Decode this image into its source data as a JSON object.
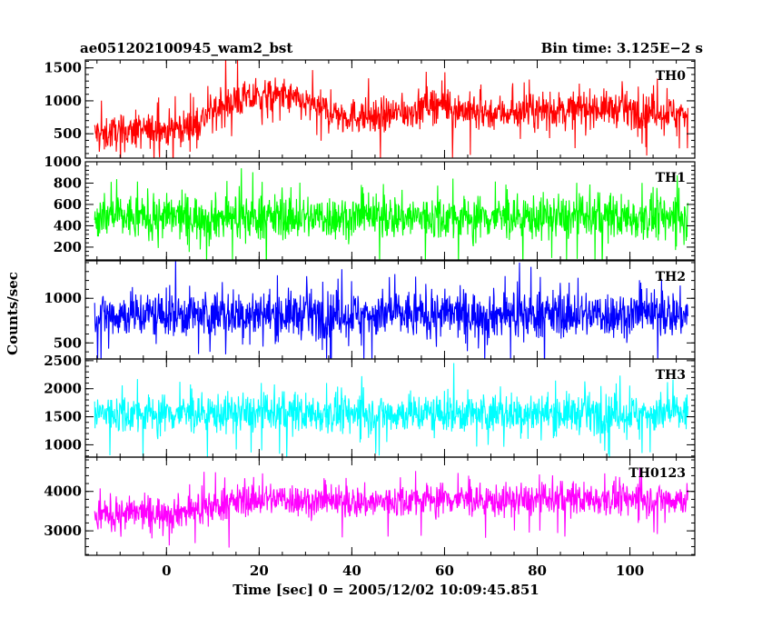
{
  "header": {
    "left_title": "ae051202100945_wam2_bst",
    "right_title": "Bin time: 3.125E−2 s"
  },
  "chart_data": {
    "type": "line",
    "title": "ae051202100945_wam2_bst",
    "subtitle": "Bin time: 3.125E−2 s",
    "xlabel": "Time [sec] 0 = 2005/12/02 10:09:45.851",
    "ylabel": "Counts/sec",
    "xlim": [
      -17.5,
      114
    ],
    "x_range_data": [
      -15.5,
      112.5
    ],
    "x_ticks": [
      0,
      20,
      40,
      60,
      80,
      100
    ],
    "x_tick_labels": [
      "0",
      "20",
      "40",
      "60",
      "80",
      "100"
    ],
    "grid": false,
    "legend": "none",
    "panels": [
      {
        "name": "TH0",
        "color": "#ff0000",
        "ylim": [
          130,
          1620
        ],
        "y_ticks": [
          500,
          1000,
          1500
        ],
        "y_tick_labels": [
          "500",
          "1000",
          "1500"
        ],
        "trend": [
          [
            -15.5,
            500
          ],
          [
            0,
            560
          ],
          [
            6,
            620
          ],
          [
            10,
            850
          ],
          [
            15,
            1000
          ],
          [
            20,
            1050
          ],
          [
            25,
            1080
          ],
          [
            30,
            950
          ],
          [
            38,
            780
          ],
          [
            45,
            760
          ],
          [
            52,
            830
          ],
          [
            58,
            980
          ],
          [
            62,
            880
          ],
          [
            68,
            820
          ],
          [
            75,
            830
          ],
          [
            85,
            860
          ],
          [
            92,
            900
          ],
          [
            100,
            860
          ],
          [
            112.5,
            800
          ]
        ],
        "spread": 240
      },
      {
        "name": "TH1",
        "color": "#00ff00",
        "ylim": [
          80,
          1000
        ],
        "y_ticks": [
          200,
          400,
          600,
          800,
          1000
        ],
        "y_tick_labels": [
          "200",
          "400",
          "600",
          "800",
          "1000"
        ],
        "trend": [
          [
            -15.5,
            480
          ],
          [
            112.5,
            480
          ]
        ],
        "spread": 190
      },
      {
        "name": "TH2",
        "color": "#0000ff",
        "ylim": [
          320,
          1420
        ],
        "y_ticks": [
          500,
          1000
        ],
        "y_tick_labels": [
          "500",
          "1000"
        ],
        "trend": [
          [
            -15.5,
            820
          ],
          [
            112.5,
            820
          ]
        ],
        "spread": 240
      },
      {
        "name": "TH3",
        "color": "#00ffff",
        "ylim": [
          780,
          2530
        ],
        "y_ticks": [
          1000,
          1500,
          2000,
          2500
        ],
        "y_tick_labels": [
          "1000",
          "1500",
          "2000",
          "2500"
        ],
        "trend": [
          [
            -15.5,
            1560
          ],
          [
            112.5,
            1560
          ]
        ],
        "spread": 320
      },
      {
        "name": "TH0123",
        "color": "#ff00ff",
        "ylim": [
          2380,
          4870
        ],
        "y_ticks": [
          3000,
          4000
        ],
        "y_tick_labels": [
          "3000",
          "4000"
        ],
        "trend": [
          [
            -15.5,
            3400
          ],
          [
            5,
            3500
          ],
          [
            12,
            3680
          ],
          [
            18,
            3800
          ],
          [
            25,
            3820
          ],
          [
            35,
            3720
          ],
          [
            45,
            3720
          ],
          [
            58,
            3830
          ],
          [
            70,
            3760
          ],
          [
            85,
            3800
          ],
          [
            100,
            3820
          ],
          [
            112.5,
            3800
          ]
        ],
        "spread": 380
      }
    ]
  }
}
